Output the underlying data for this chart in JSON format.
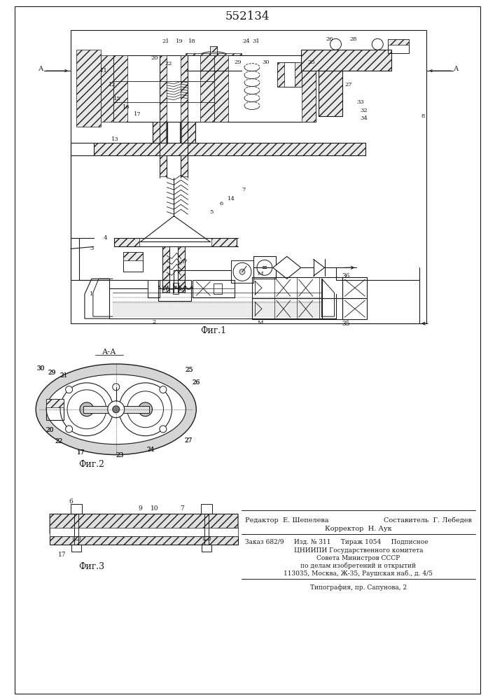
{
  "title": "552134",
  "bg_color": "#ffffff",
  "line_color": "#1a1a1a",
  "fig1_caption": "Фиг.1",
  "fig2_caption": "Фиг.2",
  "fig3_caption": "Фиг.3",
  "fig2_label": "А-А",
  "footer_line1a": "Редактор  Е. Шепелева",
  "footer_line1b": "Составитель  Г. Лебедев",
  "footer_line2": "Корректор  Н. Аук",
  "footer_line3": "Заказ 682/9     Изд. № 311     Тираж 1054     Подписное",
  "footer_line4": "ЦНИИПИ Государственного комитета",
  "footer_line5": "Совета Министров СССР",
  "footer_line6": "по делам изобретений и открытий",
  "footer_line7": "113035, Москва, Ж-35, Раушская наб., д. 4/5",
  "footer_line8": "Типография, пр. Сапунова, 2"
}
